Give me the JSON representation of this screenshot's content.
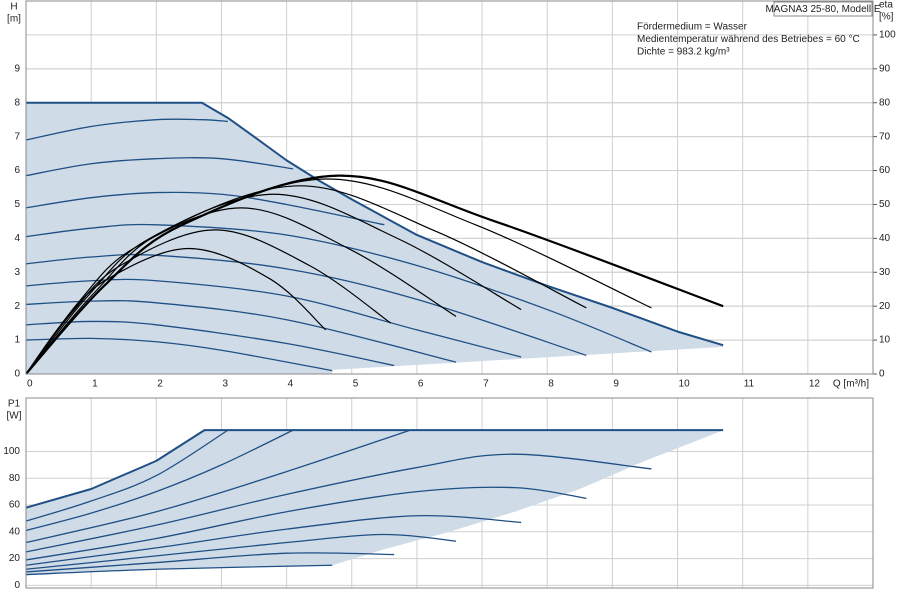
{
  "chart_data": [
    {
      "type": "line",
      "ylabel": "H",
      "yunit": "[m]",
      "y2label": "eta",
      "y2unit": "[%]",
      "xlabel": "Q [m³/h]",
      "model": "MAGNA3 25-80, Modell E",
      "notes": [
        "Fördermedium = Wasser",
        "Medientemperatur während des Betriebes = 60 °C",
        "Dichte = 983.2 kg/m³"
      ],
      "xlim": [
        0,
        13
      ],
      "xticks": [
        0,
        1,
        2,
        3,
        4,
        5,
        6,
        7,
        8,
        9,
        10,
        11,
        12
      ],
      "ylim": [
        0,
        11
      ],
      "yticks": [
        0,
        1,
        2,
        3,
        4,
        5,
        6,
        7,
        8,
        9
      ],
      "y2lim": [
        0,
        110
      ],
      "y2ticks": [
        0,
        10,
        20,
        30,
        40,
        50,
        60,
        70,
        80,
        90,
        100
      ],
      "grid": true,
      "show_xtick_labels": true,
      "series": [
        {
          "type": "area",
          "color": "#cfdce8",
          "x": [
            0,
            0,
            2.7,
            3.1,
            3.5,
            4,
            4.5,
            5,
            6,
            7,
            8,
            9,
            10,
            10.7,
            10.7,
            4.7,
            4.7
          ],
          "values": [
            0,
            8,
            8,
            7.55,
            7.0,
            6.3,
            5.7,
            5.15,
            4.1,
            3.3,
            2.6,
            1.95,
            1.25,
            0.85,
            0.8,
            0.12,
            0
          ]
        },
        {
          "type": "line",
          "color": "#1f4f85",
          "smooth": false,
          "line_width": 2,
          "x": [
            0,
            2.7,
            3.1,
            3.5,
            4,
            4.5,
            5,
            6,
            7,
            8,
            9,
            10,
            10.7
          ],
          "values": [
            8,
            8,
            7.55,
            7.0,
            6.3,
            5.7,
            5.15,
            4.1,
            3.3,
            2.6,
            1.95,
            1.25,
            0.85
          ]
        },
        {
          "type": "line",
          "color": "#1f4f85",
          "smooth": true,
          "line_width": 1.3,
          "x": [
            0,
            1,
            2,
            2.7,
            3.1
          ],
          "values": [
            6.9,
            7.3,
            7.5,
            7.5,
            7.45
          ]
        },
        {
          "type": "line",
          "color": "#1f4f85",
          "smooth": true,
          "line_width": 1.3,
          "x": [
            0,
            1,
            2,
            3,
            4.1
          ],
          "values": [
            5.85,
            6.2,
            6.35,
            6.35,
            6.05
          ]
        },
        {
          "type": "line",
          "color": "#1f4f85",
          "smooth": true,
          "line_width": 1.3,
          "x": [
            0,
            1,
            2,
            3,
            4,
            5.5
          ],
          "values": [
            4.9,
            5.2,
            5.35,
            5.3,
            5.0,
            4.4
          ]
        },
        {
          "type": "line",
          "color": "#1f4f85",
          "smooth": true,
          "line_width": 1.3,
          "x": [
            0,
            1,
            2,
            4,
            6,
            8,
            9.6
          ],
          "values": [
            4.05,
            4.3,
            4.4,
            4.1,
            3.2,
            1.9,
            0.65
          ]
        },
        {
          "type": "line",
          "color": "#1f4f85",
          "smooth": true,
          "line_width": 1.3,
          "x": [
            0,
            1,
            2,
            4,
            6,
            8.6
          ],
          "values": [
            3.25,
            3.45,
            3.5,
            3.1,
            2.2,
            0.55
          ]
        },
        {
          "type": "line",
          "color": "#1f4f85",
          "smooth": true,
          "line_width": 1.3,
          "x": [
            0,
            1,
            2,
            4,
            6,
            7.6
          ],
          "values": [
            2.6,
            2.75,
            2.75,
            2.3,
            1.3,
            0.5
          ]
        },
        {
          "type": "line",
          "color": "#1f4f85",
          "smooth": true,
          "line_width": 1.3,
          "x": [
            0,
            1,
            2,
            4,
            6.6
          ],
          "values": [
            2.05,
            2.15,
            2.1,
            1.6,
            0.35
          ]
        },
        {
          "type": "line",
          "color": "#1f4f85",
          "smooth": true,
          "line_width": 1.3,
          "x": [
            0,
            1,
            2,
            4,
            5.65
          ],
          "values": [
            1.45,
            1.55,
            1.45,
            0.9,
            0.25
          ]
        },
        {
          "type": "line",
          "color": "#1f4f85",
          "smooth": true,
          "line_width": 1.3,
          "x": [
            0,
            1,
            2,
            3,
            4.7
          ],
          "values": [
            1.0,
            1.05,
            0.95,
            0.7,
            0.1
          ]
        },
        {
          "type": "line",
          "axis": "y2",
          "color": "#000000",
          "smooth": true,
          "line_width": 1.2,
          "x": [
            0,
            0.6,
            1.25,
            2.5,
            3.75,
            4.6
          ],
          "values": [
            0,
            16,
            28,
            37,
            28,
            13
          ]
        },
        {
          "type": "line",
          "axis": "y2",
          "color": "#000000",
          "smooth": true,
          "line_width": 1.2,
          "x": [
            0,
            0.7,
            1.45,
            2.9,
            4.35,
            5.6
          ],
          "values": [
            0,
            18,
            32,
            42.5,
            32,
            15
          ]
        },
        {
          "type": "line",
          "axis": "y2",
          "color": "#000000",
          "smooth": true,
          "line_width": 1.2,
          "x": [
            0,
            0.8,
            1.65,
            3.3,
            4.95,
            6.6
          ],
          "values": [
            0,
            21,
            37,
            49,
            37,
            17
          ]
        },
        {
          "type": "line",
          "axis": "y2",
          "color": "#000000",
          "smooth": true,
          "line_width": 1.2,
          "x": [
            0,
            0.95,
            1.9,
            3.8,
            5.7,
            7.6
          ],
          "values": [
            0,
            23,
            40,
            53,
            40,
            19
          ]
        },
        {
          "type": "line",
          "axis": "y2",
          "color": "#000000",
          "smooth": true,
          "line_width": 1.2,
          "x": [
            0,
            1.05,
            2.1,
            4.2,
            6.3,
            8.6
          ],
          "values": [
            0,
            24,
            42,
            55.5,
            42,
            19.5
          ]
        },
        {
          "type": "line",
          "axis": "y2",
          "color": "#000000",
          "smooth": true,
          "line_width": 1.2,
          "x": [
            0,
            1.15,
            2.3,
            4.6,
            6.9,
            9.6
          ],
          "values": [
            0,
            25,
            43,
            57.5,
            44,
            19.5
          ]
        },
        {
          "type": "line",
          "axis": "y2",
          "color": "#000000",
          "smooth": true,
          "line_width": 2.2,
          "x": [
            0,
            1.2,
            2.4,
            4.8,
            7.2,
            10.7
          ],
          "values": [
            0,
            26,
            44,
            58.5,
            45,
            20
          ]
        }
      ]
    },
    {
      "type": "line",
      "ylabel": "P1",
      "yunit": "[W]",
      "xlim": [
        0,
        13
      ],
      "xticks": [
        0,
        1,
        2,
        3,
        4,
        5,
        6,
        7,
        8,
        9,
        10,
        11,
        12
      ],
      "ylim": [
        -2,
        140
      ],
      "yticks": [
        0,
        20,
        40,
        60,
        80,
        100
      ],
      "grid": true,
      "show_xtick_labels": false,
      "series": [
        {
          "type": "area",
          "color": "#cfdce8",
          "x": [
            0,
            1,
            2,
            2.74,
            10.7,
            10.5,
            9.5,
            8.5,
            7.5,
            6.5,
            5.5,
            4.7,
            2,
            0
          ],
          "values": [
            58,
            72,
            93,
            116,
            116,
            112,
            93,
            72,
            55,
            40,
            27,
            15,
            12,
            8
          ]
        },
        {
          "type": "line",
          "color": "#1f4f85",
          "smooth": false,
          "line_width": 2,
          "x": [
            0,
            1,
            2,
            2.74,
            10.7
          ],
          "values": [
            58,
            72,
            93,
            116,
            116
          ]
        },
        {
          "type": "line",
          "color": "#1f4f85",
          "smooth": true,
          "line_width": 1.3,
          "x": [
            0,
            1,
            2,
            3.1
          ],
          "values": [
            48,
            63,
            82,
            116
          ]
        },
        {
          "type": "line",
          "color": "#1f4f85",
          "smooth": true,
          "line_width": 1.3,
          "x": [
            0,
            1,
            2,
            3,
            4.1
          ],
          "values": [
            41,
            54,
            70,
            90,
            116
          ]
        },
        {
          "type": "line",
          "color": "#1f4f85",
          "smooth": true,
          "line_width": 1.3,
          "x": [
            0,
            2,
            4,
            5.9
          ],
          "values": [
            32,
            55,
            85,
            116
          ]
        },
        {
          "type": "line",
          "color": "#1f4f85",
          "smooth": true,
          "line_width": 1.3,
          "x": [
            0,
            2,
            4,
            6,
            7.5,
            9.6
          ],
          "values": [
            25,
            45,
            68,
            88,
            98,
            87
          ]
        },
        {
          "type": "line",
          "color": "#1f4f85",
          "smooth": true,
          "line_width": 1.3,
          "x": [
            0,
            2,
            4,
            6,
            7.5,
            8.6
          ],
          "values": [
            19,
            35,
            55,
            70,
            73,
            65
          ]
        },
        {
          "type": "line",
          "color": "#1f4f85",
          "smooth": true,
          "line_width": 1.3,
          "x": [
            0,
            2,
            4,
            6,
            7.6
          ],
          "values": [
            15,
            28,
            42,
            52,
            47
          ]
        },
        {
          "type": "line",
          "color": "#1f4f85",
          "smooth": true,
          "line_width": 1.3,
          "x": [
            0,
            2,
            4,
            5.5,
            6.6
          ],
          "values": [
            12,
            22,
            32,
            38,
            33
          ]
        },
        {
          "type": "line",
          "color": "#1f4f85",
          "smooth": true,
          "line_width": 1.3,
          "x": [
            0,
            2,
            4,
            5.65
          ],
          "values": [
            10,
            17,
            24,
            23
          ]
        },
        {
          "type": "line",
          "color": "#1f4f85",
          "smooth": true,
          "line_width": 1.3,
          "x": [
            0,
            2,
            4.7
          ],
          "values": [
            8,
            12,
            15
          ]
        }
      ]
    }
  ]
}
